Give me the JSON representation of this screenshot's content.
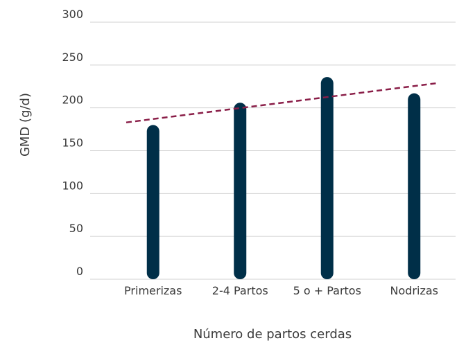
{
  "chart_data": {
    "type": "bar",
    "title": "",
    "xlabel": "Número de partos cerdas",
    "ylabel": "GMD (g/d)",
    "categories": [
      "Primerizas",
      "2-4 Partos",
      "5 o + Partos",
      "Nodrizas"
    ],
    "values": [
      180,
      206,
      236,
      217
    ],
    "ylim": [
      0,
      300
    ],
    "yticks": [
      "0",
      "50",
      "100",
      "150",
      "200",
      "250",
      "300"
    ],
    "grid": true,
    "legend": "none",
    "trendline": {
      "style": "dashed",
      "start": 183,
      "end": 229
    },
    "colors": {
      "bar": "#002f48",
      "trendline": "#8a1e48",
      "grid": "#d0d0d0",
      "text": "#3a3a3a"
    }
  }
}
